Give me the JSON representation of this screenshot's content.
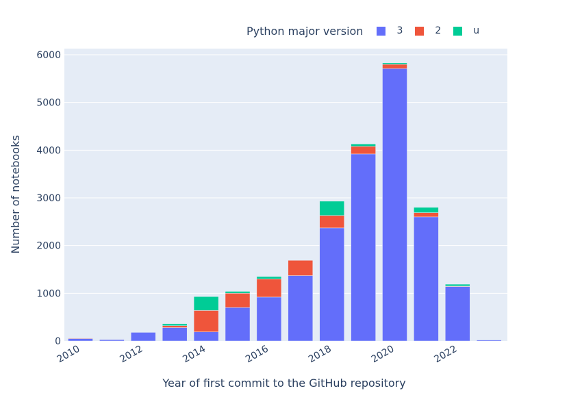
{
  "chart_data": {
    "type": "bar",
    "stacked": true,
    "xlabel": "Year of first commit to the GitHub repository",
    "ylabel": "Number of notebooks",
    "legend_title": "Python major version",
    "categories": [
      2010,
      2011,
      2012,
      2013,
      2014,
      2015,
      2016,
      2017,
      2018,
      2019,
      2020,
      2021,
      2022,
      2023
    ],
    "x_ticks": [
      "2010",
      "2012",
      "2014",
      "2016",
      "2018",
      "2020",
      "2022"
    ],
    "y_ticks": [
      "0",
      "1000",
      "2000",
      "3000",
      "4000",
      "5000",
      "6000"
    ],
    "ylim": [
      0,
      6100
    ],
    "series": [
      {
        "name": "3",
        "color": "#636efa",
        "values": [
          50,
          30,
          180,
          280,
          190,
          700,
          920,
          1370,
          2370,
          3920,
          5710,
          2600,
          1140,
          20
        ]
      },
      {
        "name": "2",
        "color": "#ef553b",
        "values": [
          10,
          5,
          0,
          40,
          450,
          300,
          380,
          320,
          260,
          160,
          90,
          90,
          10,
          0
        ]
      },
      {
        "name": "u",
        "color": "#00cc96",
        "values": [
          0,
          0,
          0,
          40,
          290,
          40,
          50,
          0,
          300,
          50,
          30,
          110,
          40,
          0
        ]
      }
    ]
  }
}
